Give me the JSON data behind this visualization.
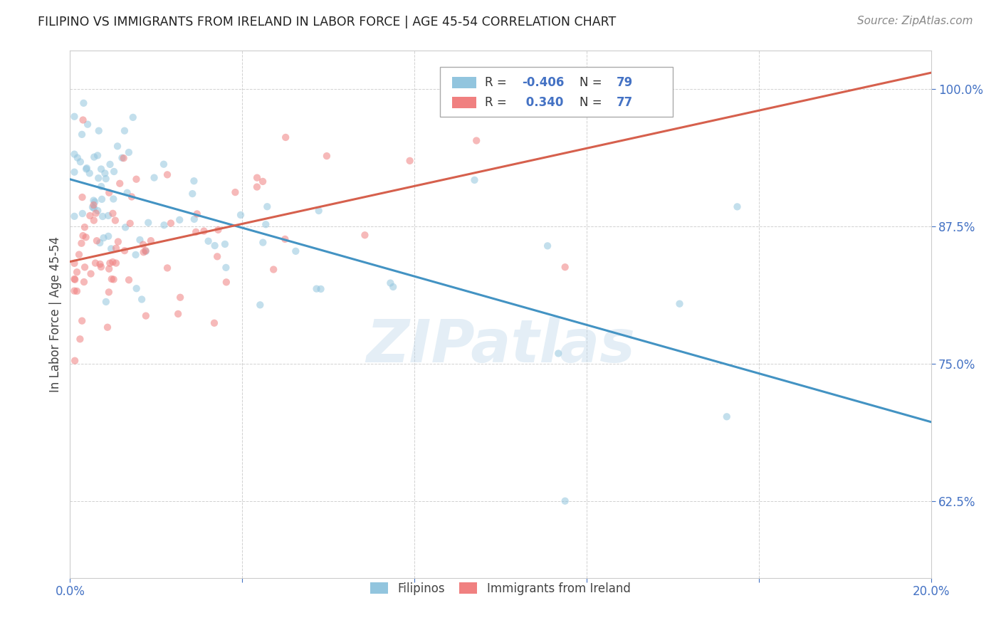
{
  "title": "FILIPINO VS IMMIGRANTS FROM IRELAND IN LABOR FORCE | AGE 45-54 CORRELATION CHART",
  "source": "Source: ZipAtlas.com",
  "ylabel_text": "In Labor Force | Age 45-54",
  "x_min": 0.0,
  "x_max": 0.2,
  "y_min": 0.555,
  "y_max": 1.035,
  "x_ticks": [
    0.0,
    0.04,
    0.08,
    0.12,
    0.16,
    0.2
  ],
  "y_ticks": [
    0.625,
    0.75,
    0.875,
    1.0
  ],
  "y_tick_labels": [
    "62.5%",
    "75.0%",
    "87.5%",
    "100.0%"
  ],
  "watermark": "ZIPatlas",
  "color_blue": "#92c5de",
  "color_blue_line": "#4393c3",
  "color_pink": "#f4a582",
  "color_pink_line": "#d6604d",
  "color_pink_scatter": "#f08080",
  "background_color": "#ffffff",
  "grid_color": "#cccccc",
  "scatter_alpha": 0.55,
  "scatter_size": 55,
  "blue_trend_x0": 0.0,
  "blue_trend_y0": 0.918,
  "blue_trend_x1": 0.2,
  "blue_trend_y1": 0.697,
  "pink_trend_x0": 0.0,
  "pink_trend_y0": 0.843,
  "pink_trend_x1": 0.2,
  "pink_trend_y1": 1.015
}
